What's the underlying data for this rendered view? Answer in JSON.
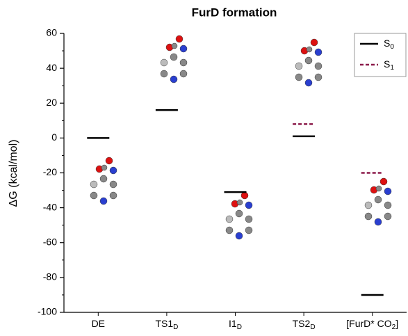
{
  "chart_data": {
    "type": "energy-levels",
    "title": "FurD formation",
    "ylabel": "ΔG (kcal/mol)",
    "categories": [
      [
        "DE"
      ],
      [
        "TS1",
        "D"
      ],
      [
        "I1",
        "D"
      ],
      [
        "TS2",
        "D"
      ],
      [
        "[FurD* CO",
        "2",
        "]"
      ]
    ],
    "series": [
      {
        "name": [
          "S",
          "0"
        ],
        "color": "#000000",
        "dash": false,
        "values": [
          0,
          16,
          -31,
          1,
          -90
        ]
      },
      {
        "name": [
          "S",
          "1"
        ],
        "color": "#8b1a4a",
        "dash": true,
        "values": [
          null,
          null,
          null,
          8,
          -20
        ]
      }
    ],
    "ylim": [
      -100,
      60
    ],
    "yticks": [
      -100,
      -80,
      -60,
      -40,
      -20,
      0,
      20,
      40,
      60
    ],
    "legend": "upper right"
  }
}
